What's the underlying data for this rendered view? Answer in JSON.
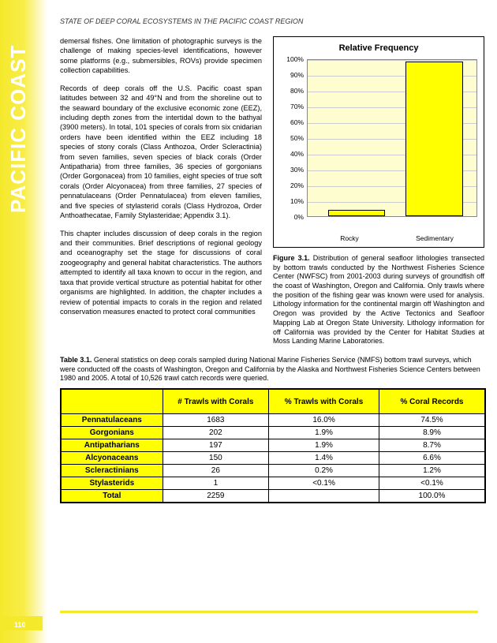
{
  "header": "STATE OF DEEP CORAL ECOSYSTEMS IN THE PACIFIC COAST REGION",
  "sidebar": "PACIFIC COAST",
  "page_number": "110",
  "paragraphs": {
    "p1": "demersal fishes.  One limitation of photographic surveys is the challenge of making species-level identifications, however some platforms (e.g., submersibles, ROVs) provide specimen collection capabilities.",
    "p2": "Records of deep corals off the U.S. Pacific coast span latitudes between 32 and 49°N and from the shoreline out to the seaward boundary of the exclusive economic zone (EEZ), including depth zones from the intertidal down to the bathyal (3900 meters).  In total, 101 species of corals from six cnidarian orders have been identified within the EEZ including 18 species of stony corals (Class Anthozoa, Order Scleractinia) from seven families, seven species of black corals (Order Antipatharia) from three families, 36 species of gorgonians (Order Gorgonacea) from 10 families, eight species of true soft corals (Order Alcyonacea) from three families, 27 species of pennatulaceans (Order Pennatulacea) from eleven families, and five species of stylasterid corals (Class Hydrozoa, Order Anthoathecatae, Family Stylasteridae; Appendix 3.1).",
    "p3": "This chapter includes discussion of deep corals in the region and their communities.  Brief descriptions of regional geology and oceanography set the stage for discussions of coral zoogeography and general habitat characteristics.  The authors attempted to identify all taxa known to occur in the region, and taxa that provide vertical structure as potential habitat for other organisms are highlighted.  In addition, the chapter includes a review of potential impacts to corals in the region and related conservation measures enacted to protect coral communities"
  },
  "chart": {
    "type": "bar",
    "title": "Relative Frequency",
    "categories": [
      "Rocky",
      "Sedimentary"
    ],
    "values": [
      4,
      98
    ],
    "bar_color": "#ffff00",
    "bar_border": "#000000",
    "background_color": "#fdfdd0",
    "grid_color": "#cccccc",
    "ylim": [
      0,
      100
    ],
    "ytick_step": 10,
    "y_labels": [
      "0%",
      "10%",
      "20%",
      "30%",
      "40%",
      "50%",
      "60%",
      "70%",
      "80%",
      "90%",
      "100%"
    ],
    "bar_width_pct": 34,
    "bar_positions_pct": [
      12,
      58
    ],
    "title_fontsize": 11,
    "label_fontsize": 8.5
  },
  "figure_caption_label": "Figure 3.1.",
  "figure_caption": "Distribution of general seafloor lithologies transected by bottom trawls conducted by the Northwest Fisheries Science Center (NWFSC) from 2001-2003 during surveys of groundfish off the coast of Washington, Oregon and California.  Only trawls where the position of the fishing gear was known were used for analysis.  Lithology information for the continental margin off Washington and Oregon was provided by the Active Tectonics and Seafloor Mapping Lab at Oregon State University.  Lithology information for off California was provided by the Center for Habitat Studies at Moss Landing Marine Laboratories.",
  "table_caption_label": "Table 3.1.",
  "table_caption": "General statistics on deep corals sampled during National Marine Fisheries Service (NMFS) bottom trawl surveys, which were conducted off the coasts of Washington, Oregon and California by the Alaska and Northwest Fisheries Science Centers between 1980 and 2005.  A total of 10,526 trawl catch records were queried.",
  "table": {
    "columns": [
      "",
      "# Trawls with Corals",
      "% Trawls with Corals",
      "% Coral Records"
    ],
    "rows": [
      [
        "Pennatulaceans",
        "1683",
        "16.0%",
        "74.5%"
      ],
      [
        "Gorgonians",
        "202",
        "1.9%",
        "8.9%"
      ],
      [
        "Antipatharians",
        "197",
        "1.9%",
        "8.7%"
      ],
      [
        "Alcyonaceans",
        "150",
        "1.4%",
        "6.6%"
      ],
      [
        "Scleractinians",
        "26",
        "0.2%",
        "1.2%"
      ],
      [
        "Stylasterids",
        "1",
        "<0.1%",
        "<0.1%"
      ],
      [
        "Total",
        "2259",
        "",
        "100.0%"
      ]
    ],
    "header_bg": "#ffff00",
    "rowhead_bg": "#ffff00",
    "border_color": "#000000",
    "col_widths_pct": [
      24,
      25,
      26,
      25
    ]
  }
}
